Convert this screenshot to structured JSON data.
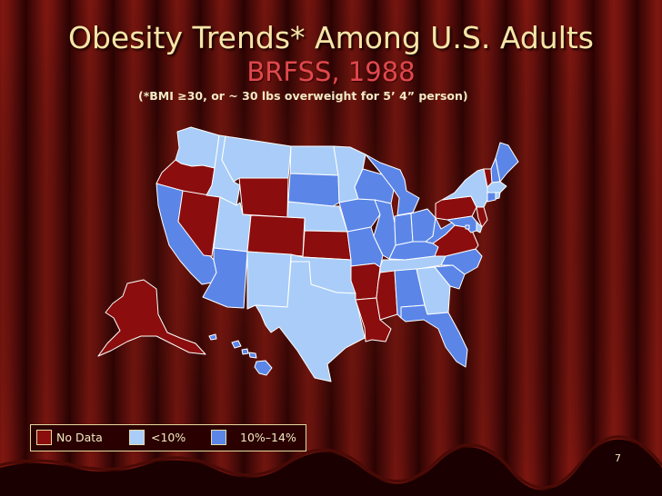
{
  "slide": {
    "title": "Obesity Trends* Among U.S. Adults",
    "subtitle": "BRFSS, 1988",
    "note": "(*BMI ≥30, or ~ 30 lbs overweight for 5’ 4” person)",
    "page_number": "7"
  },
  "colors": {
    "no_data": "#8b0d0d",
    "lt10": "#a9cdf8",
    "p10_14": "#5b86e8",
    "outline": "#ffffff"
  },
  "legend": [
    {
      "key": "no_data",
      "label": "No Data"
    },
    {
      "key": "lt10",
      "label": "<10%"
    },
    {
      "key": "p10_14",
      "label": "10%–14%"
    }
  ],
  "states": {
    "WA": "lt10",
    "OR": "no_data",
    "CA": "p10_14",
    "NV": "no_data",
    "ID": "lt10",
    "MT": "lt10",
    "WY": "no_data",
    "UT": "lt10",
    "AZ": "p10_14",
    "CO": "no_data",
    "NM": "lt10",
    "ND": "lt10",
    "SD": "p10_14",
    "NE": "lt10",
    "KS": "no_data",
    "OK": "lt10",
    "TX": "lt10",
    "MN": "lt10",
    "IA": "p10_14",
    "MO": "p10_14",
    "AR": "no_data",
    "LA": "no_data",
    "WI": "p10_14",
    "IL": "p10_14",
    "MI": "p10_14",
    "IN": "p10_14",
    "OH": "p10_14",
    "KY": "p10_14",
    "TN": "lt10",
    "MS": "no_data",
    "AL": "p10_14",
    "GA": "lt10",
    "FL": "p10_14",
    "SC": "p10_14",
    "NC": "p10_14",
    "VA": "no_data",
    "WV": "p10_14",
    "PA": "no_data",
    "NY": "lt10",
    "ME": "p10_14",
    "VT": "no_data",
    "NH": "p10_14",
    "MA": "lt10",
    "CT": "p10_14",
    "RI": "lt10",
    "NJ": "no_data",
    "DE": "lt10",
    "MD": "p10_14",
    "DC": "p10_14",
    "AK": "no_data",
    "HI": "p10_14"
  }
}
